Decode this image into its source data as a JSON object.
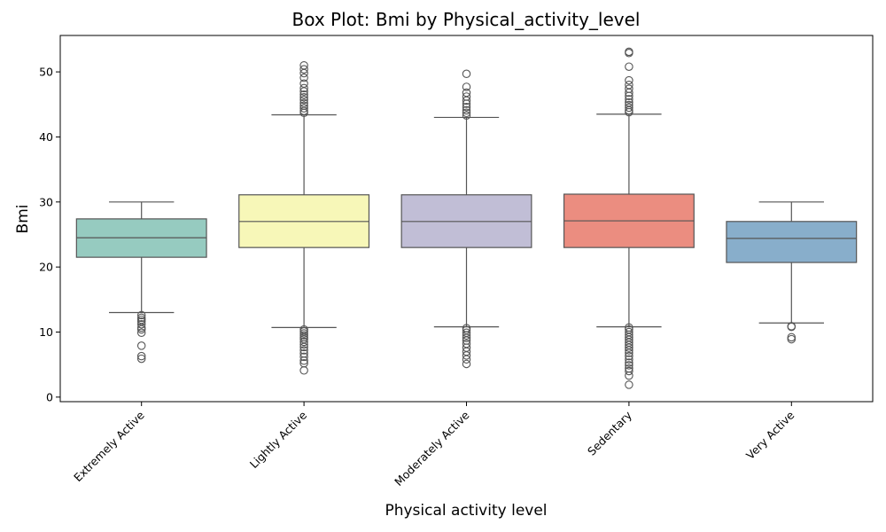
{
  "chart_data": {
    "type": "box",
    "title": "Box Plot: Bmi by Physical_activity_level",
    "xlabel": "Physical activity level",
    "ylabel": "Bmi",
    "ylim": [
      -0.7,
      55.6
    ],
    "yticks": [
      0,
      10,
      20,
      30,
      40,
      50
    ],
    "grid": false,
    "categories": [
      "Extremely Active",
      "Lightly Active",
      "Moderately Active",
      "Sedentary",
      "Very Active"
    ],
    "colors": [
      "#96cbc0",
      "#f7f7b8",
      "#c1bed6",
      "#eb8d80",
      "#88aecb"
    ],
    "boxes": [
      {
        "category": "Extremely Active",
        "whisker_low": 13.0,
        "q1": 21.5,
        "median": 24.5,
        "q3": 27.4,
        "whisker_high": 30.0,
        "outliers": [
          12.6,
          12.2,
          11.9,
          11.6,
          11.2,
          10.7,
          10.4,
          9.9,
          7.9,
          6.3,
          5.9
        ]
      },
      {
        "category": "Lightly Active",
        "whisker_low": 10.7,
        "q1": 23.0,
        "median": 27.0,
        "q3": 31.1,
        "whisker_high": 43.4,
        "outliers": [
          4.1,
          5.2,
          5.6,
          6.2,
          6.7,
          7.2,
          7.7,
          8.1,
          8.5,
          8.9,
          9.2,
          9.5,
          9.8,
          10.1,
          10.4,
          43.7,
          44.0,
          44.4,
          44.8,
          45.2,
          45.7,
          46.1,
          46.5,
          47.0,
          47.5,
          48.2,
          49.1,
          49.8,
          50.4,
          51.0
        ]
      },
      {
        "category": "Moderately Active",
        "whisker_low": 10.8,
        "q1": 23.0,
        "median": 27.0,
        "q3": 31.1,
        "whisker_high": 43.0,
        "outliers": [
          5.1,
          5.8,
          6.4,
          7.0,
          7.6,
          8.2,
          8.7,
          9.1,
          9.5,
          9.9,
          10.3,
          10.6,
          43.3,
          43.7,
          44.1,
          44.6,
          45.1,
          45.6,
          46.2,
          46.8,
          47.7,
          49.7
        ]
      },
      {
        "category": "Sedentary",
        "whisker_low": 10.8,
        "q1": 23.0,
        "median": 27.1,
        "q3": 31.2,
        "whisker_high": 43.5,
        "outliers": [
          1.9,
          3.3,
          4.0,
          4.4,
          4.9,
          5.3,
          5.8,
          6.3,
          6.8,
          7.2,
          7.6,
          8.0,
          8.4,
          8.8,
          9.2,
          9.6,
          10.0,
          10.4,
          10.7,
          43.8,
          44.1,
          44.5,
          44.9,
          45.3,
          45.8,
          46.3,
          46.8,
          47.4,
          48.0,
          48.7,
          50.8,
          52.9,
          53.1
        ]
      },
      {
        "category": "Very Active",
        "whisker_low": 11.4,
        "q1": 20.7,
        "median": 24.4,
        "q3": 27.0,
        "whisker_high": 30.0,
        "outliers": [
          10.9,
          10.8,
          9.2,
          8.9
        ]
      }
    ]
  }
}
